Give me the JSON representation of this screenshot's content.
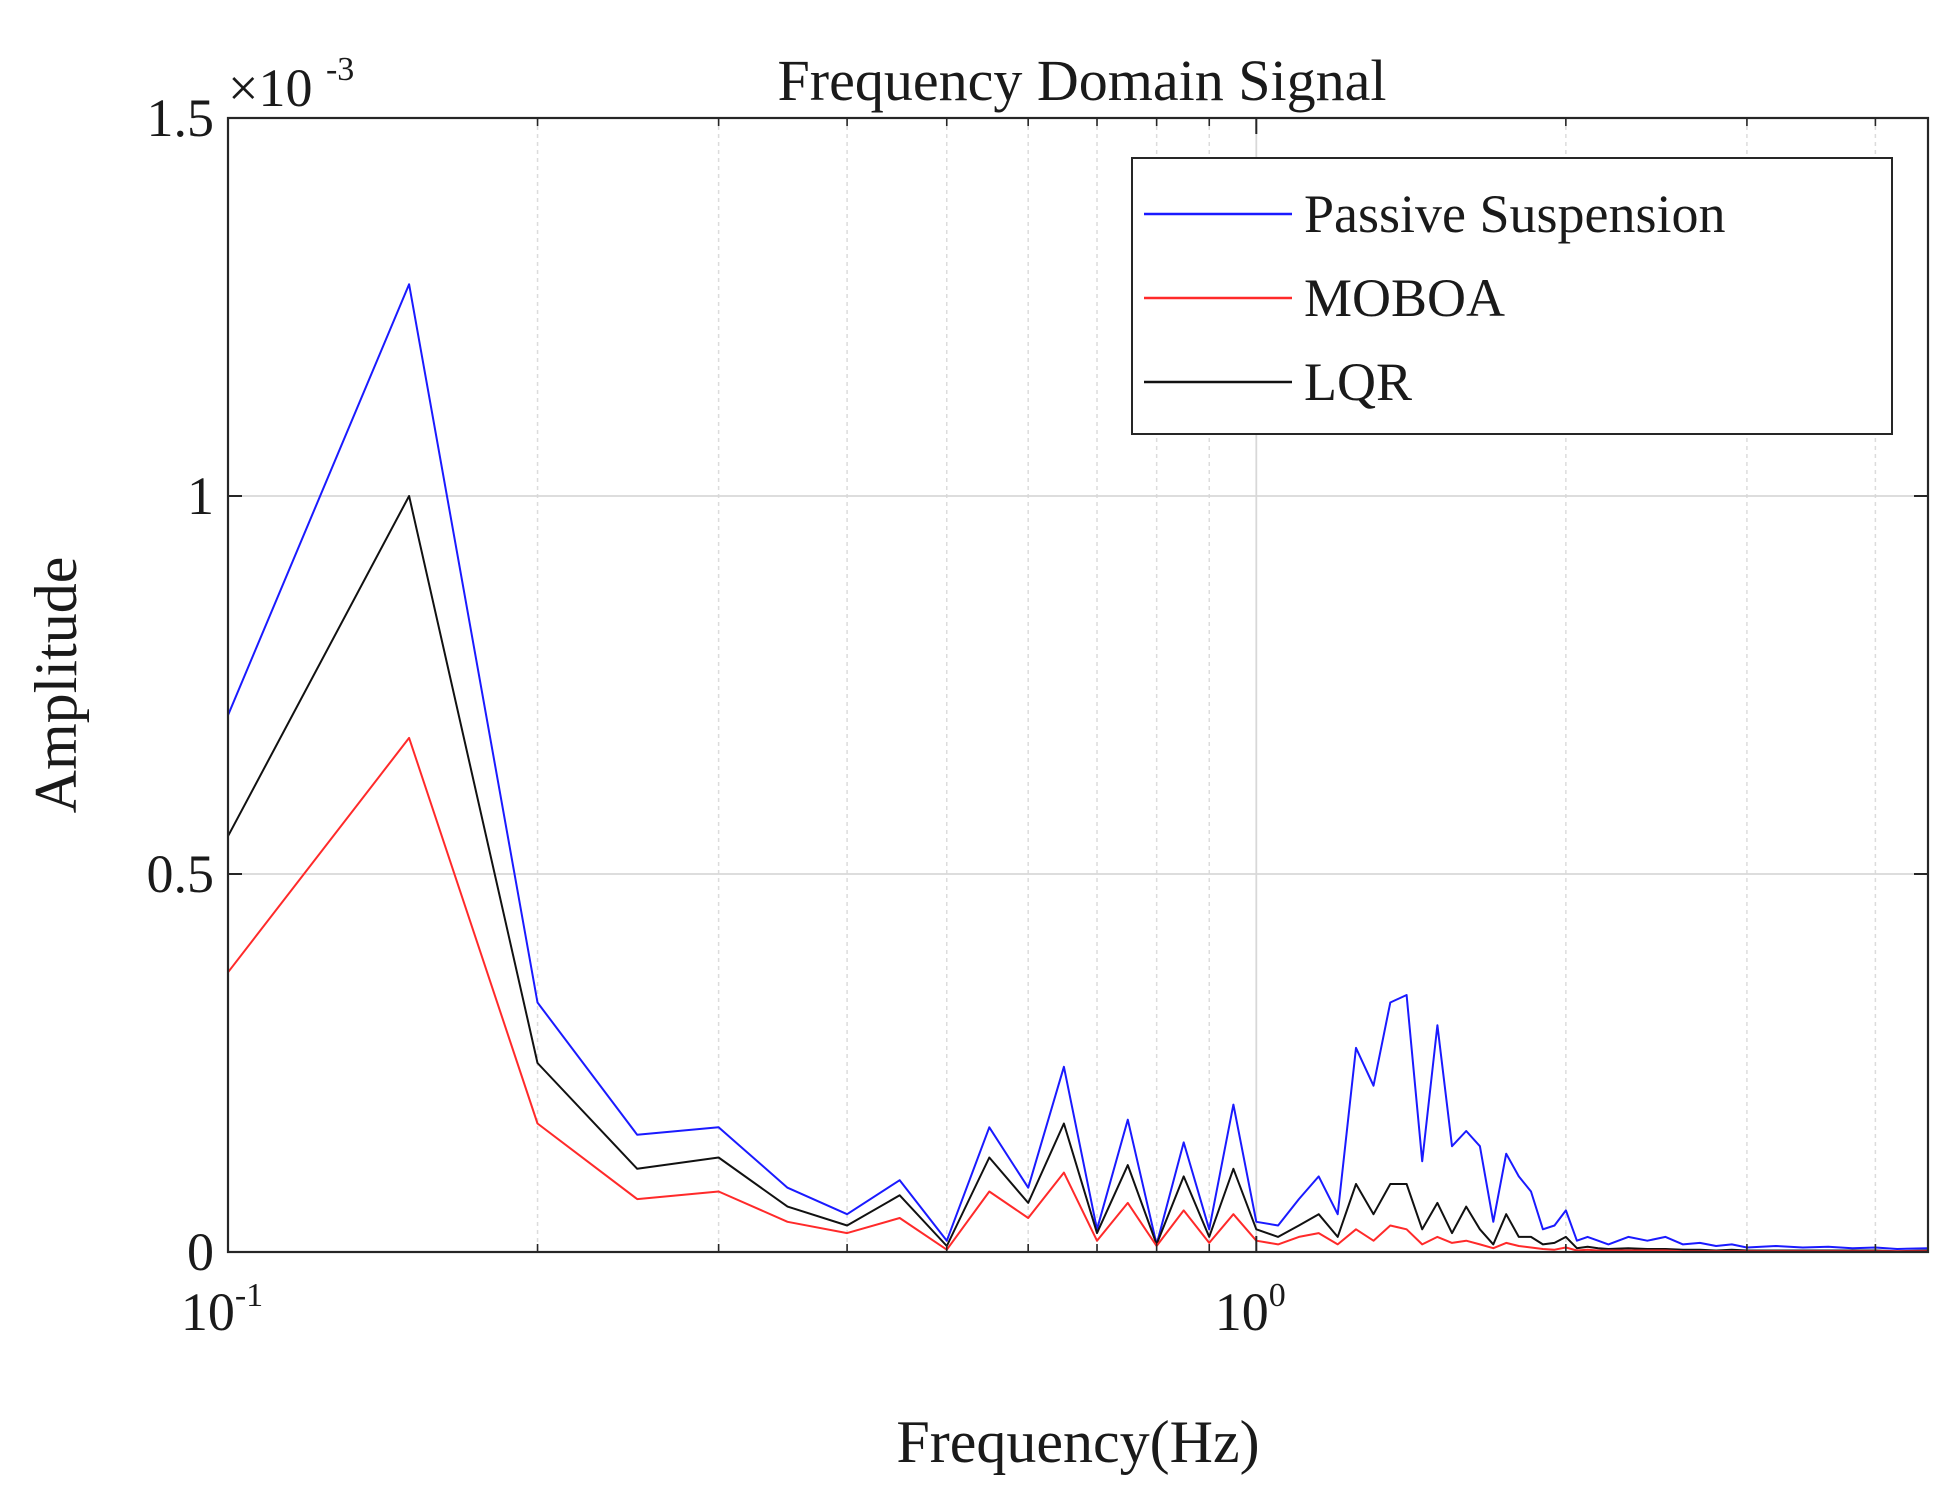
{
  "chart_data": {
    "type": "line",
    "title": "Frequency Domain Signal",
    "xlabel": "Frequency(Hz)",
    "ylabel": "Amplitude",
    "xscale": "log",
    "xlim": [
      0.1,
      4.5
    ],
    "ylim": [
      0,
      1.5
    ],
    "y_multiplier_base": "×10",
    "y_multiplier_exp": "-3",
    "x_ticks": [
      {
        "value": 0.1,
        "base": "10",
        "exp": "-1"
      },
      {
        "value": 1,
        "base": "10",
        "exp": "0"
      }
    ],
    "y_ticks": [
      {
        "value": 0,
        "label": "0"
      },
      {
        "value": 0.5,
        "label": "0.5"
      },
      {
        "value": 1,
        "label": "1"
      },
      {
        "value": 1.5,
        "label": "1.5"
      }
    ],
    "grid": true,
    "legend_position": "top-right",
    "colors": {
      "passive": "#1a1aff",
      "moboa": "#ff2a2a",
      "lqr": "#111111"
    },
    "x": [
      0.1,
      0.15,
      0.2,
      0.25,
      0.3,
      0.35,
      0.4,
      0.45,
      0.5,
      0.55,
      0.6,
      0.65,
      0.7,
      0.75,
      0.8,
      0.85,
      0.9,
      0.95,
      1.0,
      1.05,
      1.1,
      1.15,
      1.2,
      1.25,
      1.3,
      1.35,
      1.4,
      1.45,
      1.5,
      1.55,
      1.6,
      1.65,
      1.7,
      1.75,
      1.8,
      1.85,
      1.9,
      1.95,
      2.0,
      2.05,
      2.1,
      2.15,
      2.2,
      2.3,
      2.4,
      2.5,
      2.6,
      2.7,
      2.8,
      2.9,
      3.0,
      3.2,
      3.4,
      3.6,
      3.8,
      4.0,
      4.2,
      4.5
    ],
    "series": [
      {
        "name": "Passive Suspension",
        "color_key": "passive",
        "values": [
          0.71,
          1.28,
          0.33,
          0.155,
          0.165,
          0.085,
          0.05,
          0.095,
          0.015,
          0.165,
          0.085,
          0.245,
          0.03,
          0.175,
          0.01,
          0.145,
          0.03,
          0.195,
          0.04,
          0.035,
          0.07,
          0.1,
          0.05,
          0.27,
          0.22,
          0.33,
          0.34,
          0.12,
          0.3,
          0.14,
          0.16,
          0.14,
          0.04,
          0.13,
          0.1,
          0.08,
          0.03,
          0.035,
          0.055,
          0.015,
          0.02,
          0.015,
          0.01,
          0.02,
          0.015,
          0.02,
          0.01,
          0.012,
          0.008,
          0.01,
          0.006,
          0.008,
          0.006,
          0.007,
          0.005,
          0.006,
          0.004,
          0.005
        ]
      },
      {
        "name": "MOBOA",
        "color_key": "moboa",
        "values": [
          0.37,
          0.68,
          0.17,
          0.07,
          0.08,
          0.04,
          0.025,
          0.045,
          0.003,
          0.08,
          0.045,
          0.105,
          0.015,
          0.065,
          0.008,
          0.055,
          0.012,
          0.05,
          0.015,
          0.01,
          0.02,
          0.025,
          0.01,
          0.03,
          0.015,
          0.035,
          0.03,
          0.01,
          0.02,
          0.012,
          0.015,
          0.01,
          0.005,
          0.012,
          0.008,
          0.006,
          0.004,
          0.003,
          0.006,
          0.002,
          0.003,
          0.002,
          0.002,
          0.002,
          0.002,
          0.002,
          0.001,
          0.001,
          0.001,
          0.001,
          0.001,
          0.001,
          0.001,
          0.001,
          0.001,
          0.001,
          0.001,
          0.001
        ]
      },
      {
        "name": "LQR",
        "color_key": "lqr",
        "values": [
          0.55,
          1.0,
          0.25,
          0.11,
          0.125,
          0.06,
          0.035,
          0.075,
          0.008,
          0.125,
          0.065,
          0.17,
          0.025,
          0.115,
          0.01,
          0.1,
          0.02,
          0.11,
          0.03,
          0.02,
          0.035,
          0.05,
          0.02,
          0.09,
          0.05,
          0.09,
          0.09,
          0.03,
          0.065,
          0.025,
          0.06,
          0.03,
          0.01,
          0.05,
          0.02,
          0.02,
          0.01,
          0.012,
          0.02,
          0.005,
          0.007,
          0.005,
          0.004,
          0.005,
          0.004,
          0.004,
          0.003,
          0.003,
          0.002,
          0.003,
          0.002,
          0.002,
          0.002,
          0.002,
          0.002,
          0.002,
          0.001,
          0.002
        ]
      }
    ]
  }
}
